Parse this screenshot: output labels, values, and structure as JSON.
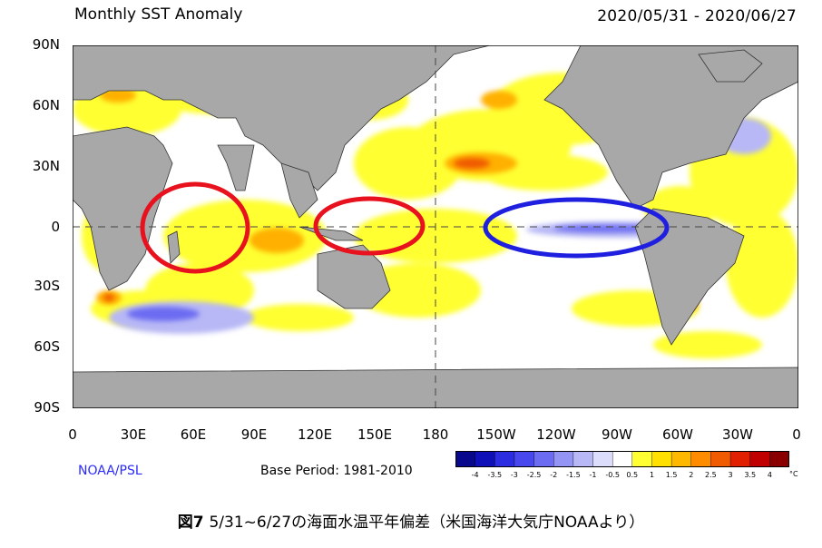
{
  "header": {
    "title": "Monthly SST Anomaly",
    "date_range": "2020/05/31 - 2020/06/27"
  },
  "map": {
    "lat_labels": [
      "90N",
      "60N",
      "30N",
      "0",
      "30S",
      "60S",
      "90S"
    ],
    "lon_labels": [
      "0",
      "30E",
      "60E",
      "90E",
      "120E",
      "150E",
      "180",
      "150W",
      "120W",
      "90W",
      "60W",
      "30W",
      "0"
    ],
    "colors": {
      "land": "#a8a8a8",
      "ocean_neutral": "#ffffff",
      "warm_circle": "#e8121f",
      "cool_circle": "#1f1fe0"
    },
    "highlight_circles": [
      {
        "region": "Indian Ocean",
        "color": "red"
      },
      {
        "region": "Western Pacific",
        "color": "red"
      },
      {
        "region": "Eastern Equatorial Pacific",
        "color": "blue"
      }
    ]
  },
  "colorbar": {
    "labels": [
      "-4",
      "-3.5",
      "-3",
      "-2.5",
      "-2",
      "-1.5",
      "-1",
      "-0.5",
      "0.5",
      "1",
      "1.5",
      "2",
      "2.5",
      "3",
      "3.5",
      "4"
    ],
    "colors": [
      "#08088c",
      "#1010b8",
      "#2c2ce0",
      "#4848ee",
      "#6c6cf2",
      "#9494f4",
      "#b8b8f6",
      "#dcdcfb",
      "#ffffff",
      "#ffff33",
      "#ffe000",
      "#ffb800",
      "#ff8c00",
      "#f05a00",
      "#e02000",
      "#c00000",
      "#8a0000"
    ],
    "unit": "°C"
  },
  "footer": {
    "credit": "NOAA/PSL",
    "base_period": "Base Period: 1981-2010"
  },
  "caption": {
    "figure_label": "図7",
    "text": "5/31~6/27の海面水温平年偏差（米国海洋大気庁NOAAより）"
  }
}
